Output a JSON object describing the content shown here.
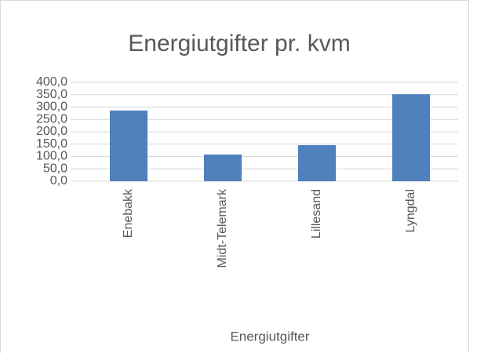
{
  "chart_data": {
    "type": "bar",
    "title": "Energiutgifter pr. kvm",
    "x_label": "Energiutgifter",
    "categories": [
      "Enebakk",
      "Midt-Telemark",
      "Lillesand",
      "Lyngdal"
    ],
    "values": [
      286,
      108,
      146,
      352
    ],
    "color": "#4f81bd",
    "ylim": [
      0,
      400
    ],
    "yticks": [
      {
        "value": 0,
        "label": "0,0"
      },
      {
        "value": 50,
        "label": "50,0"
      },
      {
        "value": 100,
        "label": "100,0"
      },
      {
        "value": 150,
        "label": "150,0"
      },
      {
        "value": 200,
        "label": "200,0"
      },
      {
        "value": 250,
        "label": "250,0"
      },
      {
        "value": 300,
        "label": "300,0"
      },
      {
        "value": 350,
        "label": "350,0"
      },
      {
        "value": 400,
        "label": "400,0"
      }
    ],
    "grid": true
  }
}
